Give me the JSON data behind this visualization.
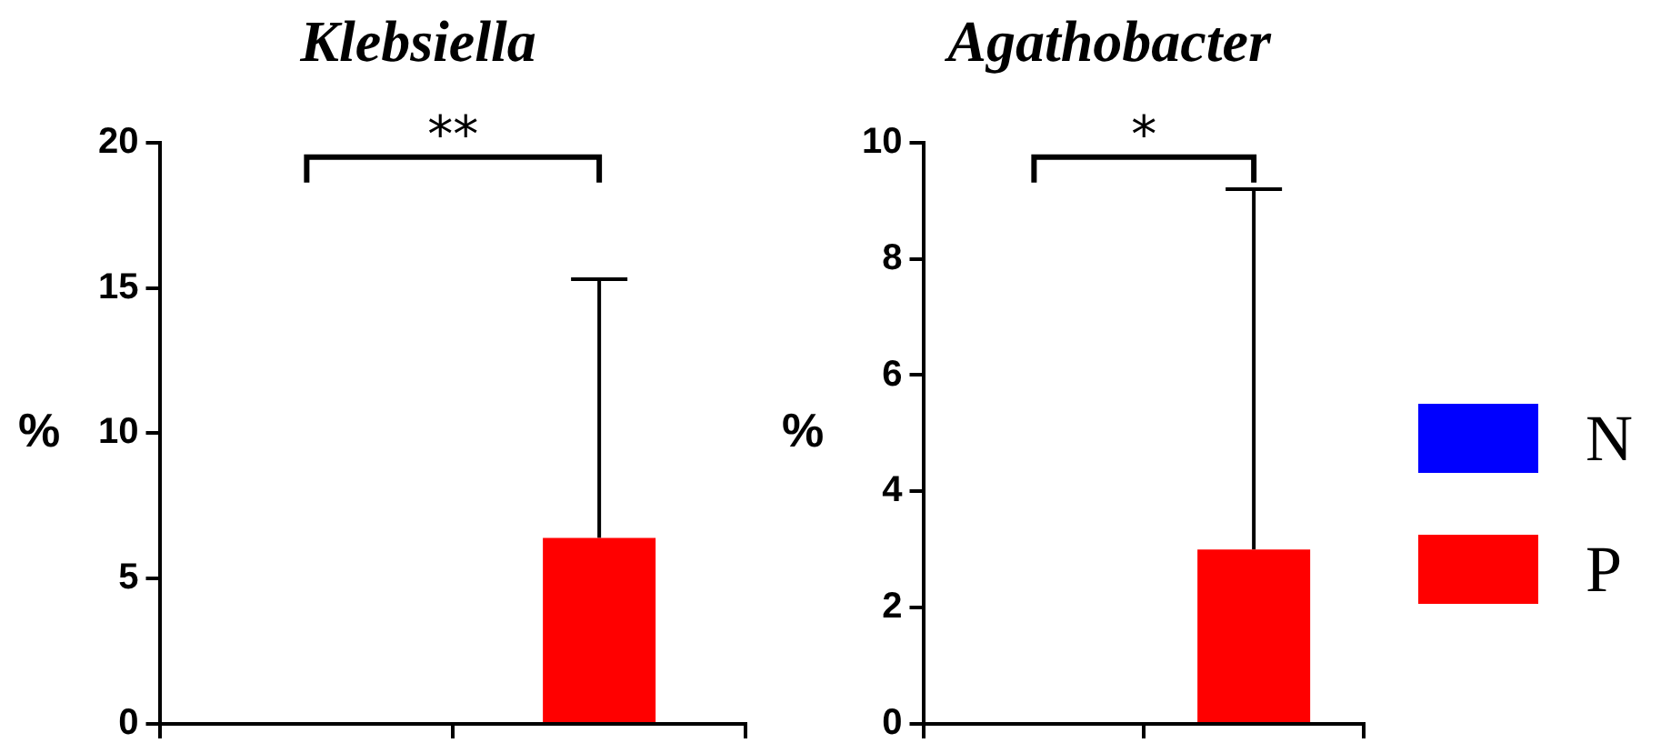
{
  "chart_data": [
    {
      "type": "bar",
      "title": "Klebsiella",
      "ylabel": "%",
      "categories": [
        null,
        null
      ],
      "ylim": [
        0,
        20
      ],
      "yticks": [
        0,
        5,
        10,
        15,
        20
      ],
      "grid": false,
      "legend": false,
      "annotations": [
        "**"
      ],
      "series": [
        {
          "color": "#0000ff",
          "values": [
            0,
            null
          ],
          "errors": [
            null,
            null
          ]
        },
        {
          "color": "#ff0000",
          "values": [
            null,
            6.4
          ],
          "errors": [
            null,
            [
              6.4,
              15.3
            ]
          ]
        }
      ]
    },
    {
      "type": "bar",
      "title": "Agathobacter",
      "ylabel": "%",
      "categories": [
        null,
        null
      ],
      "ylim": [
        0,
        10
      ],
      "yticks": [
        0,
        2,
        4,
        6,
        8,
        10
      ],
      "grid": false,
      "legend": "right",
      "annotations": [
        "*"
      ],
      "series": [
        {
          "name": "N",
          "color": "#0000ff",
          "values": [
            0,
            null
          ],
          "errors": [
            null,
            null
          ]
        },
        {
          "name": "P",
          "color": "#ff0000",
          "values": [
            null,
            3.0
          ],
          "errors": [
            null,
            [
              3.0,
              9.2
            ]
          ]
        }
      ]
    }
  ]
}
